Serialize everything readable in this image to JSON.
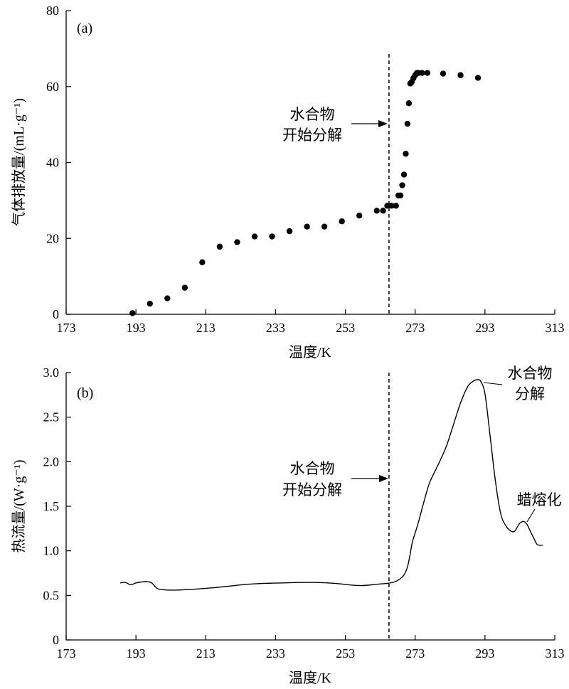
{
  "chart_data": [
    {
      "type": "scatter",
      "panel": "(a)",
      "xlabel": "温度/K",
      "ylabel": "气体排放量/(mL·g⁻¹)",
      "xlim": [
        173,
        313
      ],
      "ylim": [
        0,
        80
      ],
      "xticks": [
        173,
        193,
        213,
        233,
        253,
        273,
        293,
        313
      ],
      "yticks": [
        0,
        20,
        40,
        60,
        80
      ],
      "grid": false,
      "series": [
        {
          "x": [
            192,
            197,
            202,
            207,
            212,
            217,
            222,
            227,
            232,
            237,
            242,
            247,
            252,
            257,
            262,
            263.8,
            265,
            266.2,
            267.5,
            268.2,
            268.8,
            269.3,
            269.8,
            270.3,
            270.8,
            271.2,
            271.6,
            272,
            272.5,
            273,
            273.5,
            274,
            275,
            276.5,
            281,
            286,
            291
          ],
          "y": [
            0.3,
            2.8,
            4.2,
            7.0,
            13.7,
            17.8,
            19.0,
            20.5,
            20.5,
            21.9,
            23.1,
            23.1,
            24.5,
            26.0,
            27.3,
            27.3,
            28.6,
            28.6,
            28.6,
            31.3,
            31.3,
            34.0,
            36.8,
            42.3,
            50.2,
            55.6,
            60.8,
            61.2,
            62.2,
            63.0,
            63.6,
            63.6,
            63.6,
            63.6,
            63.4,
            63.0,
            62.3
          ]
        }
      ],
      "vline": 265.5,
      "annotations": [
        {
          "text_lines": [
            "水合物",
            "开始分解"
          ],
          "arrow_to_x": 265.5,
          "y": 50
        }
      ]
    },
    {
      "type": "line",
      "panel": "(b)",
      "xlabel": "温度/K",
      "ylabel": "热流量/(W·g⁻¹)",
      "xlim": [
        173,
        313
      ],
      "ylim": [
        0,
        3.0
      ],
      "xticks": [
        173,
        193,
        213,
        233,
        253,
        273,
        293,
        313
      ],
      "yticks": [
        0,
        0.5,
        1.0,
        1.5,
        2.0,
        2.5,
        3.0
      ],
      "ytick_labels": [
        "0",
        "0.5",
        "1.0",
        "1.5",
        "2.0",
        "2.5",
        "3.0"
      ],
      "grid": false,
      "series": [
        {
          "x": [
            188.5,
            190,
            191.5,
            193,
            194.5,
            196,
            197.5,
            199,
            200.5,
            202,
            205,
            210,
            215,
            220,
            225,
            230,
            235,
            240,
            245,
            250,
            255,
            258,
            262,
            265,
            267,
            268.5,
            269.8,
            270.8,
            271.5,
            272.2,
            273,
            274,
            275.5,
            277,
            278.5,
            280,
            282,
            284,
            286,
            288,
            289.5,
            290.8,
            291.8,
            293,
            294.5,
            296,
            297.5,
            299,
            300.5,
            301.5,
            302.3,
            303,
            304,
            305,
            306,
            307,
            308,
            309.5
          ],
          "y": [
            0.64,
            0.645,
            0.62,
            0.64,
            0.65,
            0.655,
            0.64,
            0.58,
            0.565,
            0.56,
            0.56,
            0.57,
            0.585,
            0.605,
            0.625,
            0.635,
            0.64,
            0.645,
            0.645,
            0.635,
            0.615,
            0.61,
            0.625,
            0.635,
            0.65,
            0.68,
            0.73,
            0.82,
            0.95,
            1.1,
            1.2,
            1.33,
            1.55,
            1.75,
            1.88,
            2.0,
            2.18,
            2.42,
            2.66,
            2.84,
            2.9,
            2.92,
            2.9,
            2.76,
            2.28,
            1.78,
            1.42,
            1.28,
            1.22,
            1.22,
            1.27,
            1.31,
            1.33,
            1.3,
            1.22,
            1.14,
            1.07,
            1.06
          ]
        }
      ],
      "vline": 265.5,
      "annotations": [
        {
          "text_lines": [
            "水合物",
            "开始分解"
          ],
          "arrow_to_x": 265.5,
          "y": 1.73
        },
        {
          "text_lines": [
            "水合物",
            "分解"
          ],
          "leader_from_x": 291,
          "leader_from_y": 2.92
        },
        {
          "text_lines": [
            "蜡熔化"
          ],
          "leader_from_x": 305,
          "leader_from_y": 1.33
        }
      ]
    }
  ]
}
